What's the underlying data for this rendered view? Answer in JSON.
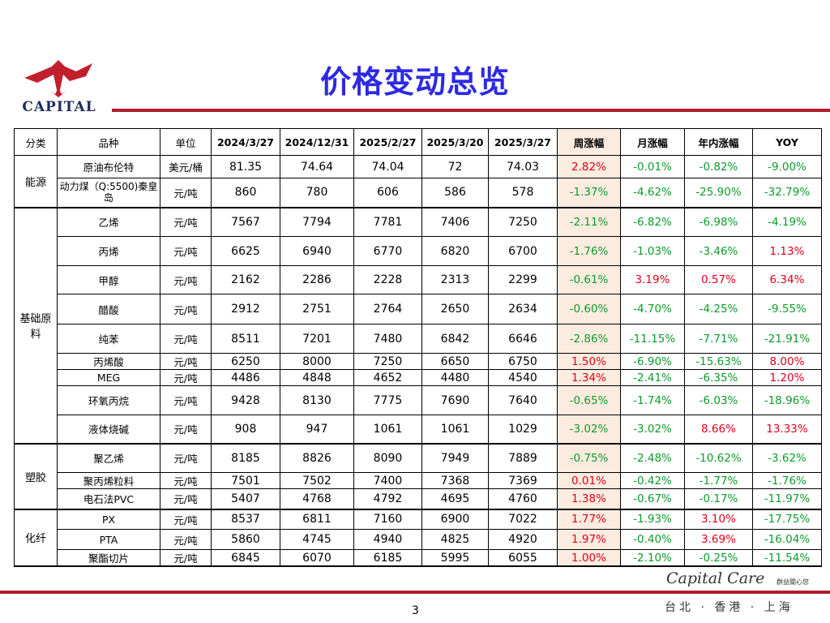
{
  "title": "价格变动总览",
  "logo": {
    "text": "CAPITAL"
  },
  "headers": [
    "分类",
    "品种",
    "单位",
    "2024/3/27",
    "2024/12/31",
    "2025/2/27",
    "2025/3/20",
    "2025/3/27",
    "周涨幅",
    "月涨幅",
    "年内涨幅",
    "YOY"
  ],
  "groups": [
    {
      "name": "能源",
      "rows": [
        [
          "原油布伦特",
          "美元/桶",
          "81.35",
          "74.64",
          "74.04",
          "72",
          "74.03",
          "2.82%",
          "-0.01%",
          "-0.82%",
          "-9.00%"
        ],
        [
          "动力煤（Q:5500)秦皇岛",
          "元/吨",
          "860",
          "780",
          "606",
          "586",
          "578",
          "-1.37%",
          "-4.62%",
          "-25.90%",
          "-32.79%"
        ]
      ]
    },
    {
      "name": "基础原料",
      "rows": [
        [
          "乙烯",
          "元/吨",
          "7567",
          "7794",
          "7781",
          "7406",
          "7250",
          "-2.11%",
          "-6.82%",
          "-6.98%",
          "-4.19%"
        ],
        [
          "丙烯",
          "元/吨",
          "6625",
          "6940",
          "6770",
          "6820",
          "6700",
          "-1.76%",
          "-1.03%",
          "-3.46%",
          "1.13%"
        ],
        [
          "甲醇",
          "元/吨",
          "2162",
          "2286",
          "2228",
          "2313",
          "2299",
          "-0.61%",
          "3.19%",
          "0.57%",
          "6.34%"
        ],
        [
          "醋酸",
          "元/吨",
          "2912",
          "2751",
          "2764",
          "2650",
          "2634",
          "-0.60%",
          "-4.70%",
          "-4.25%",
          "-9.55%"
        ],
        [
          "纯苯",
          "元/吨",
          "8511",
          "7201",
          "7480",
          "6842",
          "6646",
          "-2.86%",
          "-11.15%",
          "-7.71%",
          "-21.91%"
        ],
        [
          "丙烯酸",
          "元/吨",
          "6250",
          "8000",
          "7250",
          "6650",
          "6750",
          "1.50%",
          "-6.90%",
          "-15.63%",
          "8.00%"
        ],
        [
          "MEG",
          "元/吨",
          "4486",
          "4848",
          "4652",
          "4480",
          "4540",
          "1.34%",
          "-2.41%",
          "-6.35%",
          "1.20%"
        ],
        [
          "环氧丙烷",
          "元/吨",
          "9428",
          "8130",
          "7775",
          "7690",
          "7640",
          "-0.65%",
          "-1.74%",
          "-6.03%",
          "-18.96%"
        ],
        [
          "液体烧碱",
          "元/吨",
          "908",
          "947",
          "1061",
          "1061",
          "1029",
          "-3.02%",
          "-3.02%",
          "8.66%",
          "13.33%"
        ]
      ]
    },
    {
      "name": "塑胶",
      "rows": [
        [
          "聚乙烯",
          "元/吨",
          "8185",
          "8826",
          "8090",
          "7949",
          "7889",
          "-0.75%",
          "-2.48%",
          "-10.62%",
          "-3.62%"
        ],
        [
          "聚丙烯粒料",
          "元/吨",
          "7501",
          "7502",
          "7400",
          "7368",
          "7369",
          "0.01%",
          "-0.42%",
          "-1.77%",
          "-1.76%"
        ],
        [
          "电石法PVC",
          "元/吨",
          "5407",
          "4768",
          "4792",
          "4695",
          "4760",
          "1.38%",
          "-0.67%",
          "-0.17%",
          "-11.97%"
        ]
      ]
    },
    {
      "name": "化纤",
      "rows": [
        [
          "PX",
          "元/吨",
          "8537",
          "6811",
          "7160",
          "6900",
          "7022",
          "1.77%",
          "-1.93%",
          "3.10%",
          "-17.75%"
        ],
        [
          "PTA",
          "元/吨",
          "5860",
          "4745",
          "4940",
          "4825",
          "4920",
          "1.97%",
          "-0.40%",
          "3.69%",
          "-16.04%"
        ],
        [
          "聚酯切片",
          "元/吨",
          "6845",
          "6070",
          "6185",
          "5995",
          "6055",
          "1.00%",
          "-2.10%",
          "-0.25%",
          "-11.54%"
        ]
      ]
    }
  ],
  "footer": {
    "page_number": "3",
    "capital_care": "Capital Care",
    "capital_care_cn": "群益關心您",
    "cities": "台北 · 香港 · 上海"
  },
  "colors": {
    "title": "#2d2ae0",
    "accent_line": "#b01e2b",
    "positive": "#e0001b",
    "negative": "#0c9c2a",
    "week_highlight": "#fcebdf"
  }
}
